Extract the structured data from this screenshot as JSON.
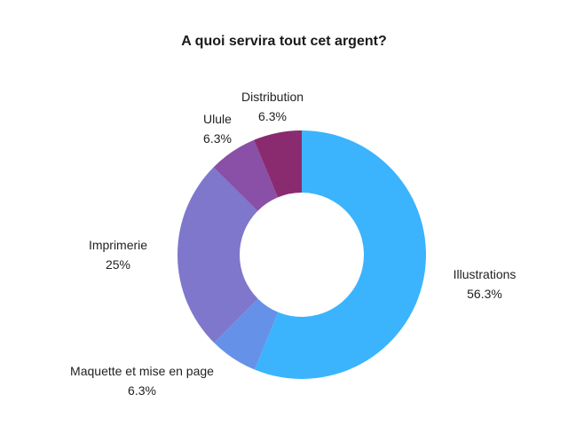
{
  "chart_data": {
    "type": "pie",
    "title": "A quoi servira tout cet argent?",
    "donut": true,
    "slices": [
      {
        "label": "Illustrations",
        "value": 56.3,
        "value_label": "56.3%",
        "color": "#3bb4fd"
      },
      {
        "label": "Maquette et mise en page",
        "value": 6.3,
        "value_label": "6.3%",
        "color": "#6592e8"
      },
      {
        "label": "Imprimerie",
        "value": 25,
        "value_label": "25%",
        "color": "#7e77cc"
      },
      {
        "label": "Ulule",
        "value": 6.3,
        "value_label": "6.3%",
        "color": "#8a4fa6"
      },
      {
        "label": "Distribution",
        "value": 6.3,
        "value_label": "6.3%",
        "color": "#8a2b70"
      }
    ]
  }
}
